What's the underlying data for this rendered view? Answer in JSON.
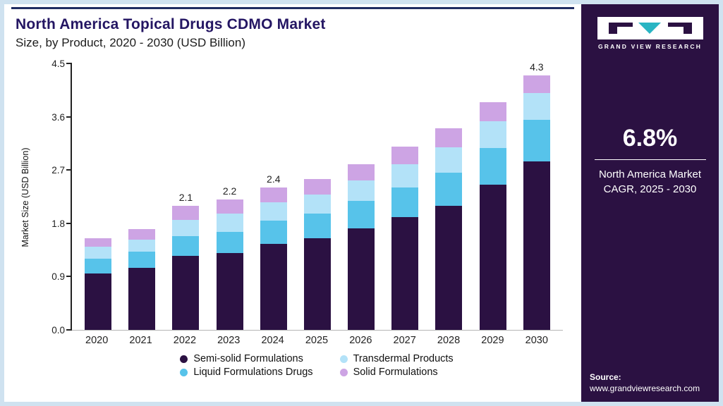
{
  "header": {
    "title_line1": "North America Topical Drugs CDMO Market",
    "title_line2": "Size, by Product, 2020 - 2030 (USD Billion)"
  },
  "chart_data": {
    "type": "bar",
    "stacked": true,
    "title": "North America Topical Drugs CDMO Market Size, by Product, 2020 - 2030 (USD Billion)",
    "xlabel": "",
    "ylabel": "Market Size (USD Billion)",
    "ylim": [
      0,
      4.5
    ],
    "yticks": [
      0.0,
      0.9,
      1.8,
      2.7,
      3.6,
      4.5
    ],
    "grid": false,
    "legend_position": "bottom",
    "categories": [
      "2020",
      "2021",
      "2022",
      "2023",
      "2024",
      "2025",
      "2026",
      "2027",
      "2028",
      "2029",
      "2030"
    ],
    "series": [
      {
        "name": "Semi-solid Formulations",
        "color": "#2b1142",
        "values": [
          0.95,
          1.05,
          1.25,
          1.3,
          1.45,
          1.55,
          1.72,
          1.9,
          2.1,
          2.45,
          2.85
        ]
      },
      {
        "name": "Liquid Formulations Drugs",
        "color": "#57c3ea",
        "values": [
          0.25,
          0.27,
          0.33,
          0.35,
          0.4,
          0.42,
          0.46,
          0.5,
          0.55,
          0.62,
          0.7
        ]
      },
      {
        "name": "Transdermal Products",
        "color": "#b3e2f8",
        "values": [
          0.2,
          0.21,
          0.28,
          0.31,
          0.31,
          0.32,
          0.35,
          0.4,
          0.43,
          0.45,
          0.45
        ]
      },
      {
        "name": "Solid Formulations",
        "color": "#cda4e4",
        "values": [
          0.15,
          0.17,
          0.24,
          0.24,
          0.24,
          0.26,
          0.27,
          0.3,
          0.32,
          0.33,
          0.3
        ]
      }
    ],
    "bar_labels": {
      "2022": "2.1",
      "2023": "2.2",
      "2024": "2.4",
      "2030": "4.3"
    },
    "legend": [
      {
        "label": "Semi-solid Formulations",
        "color": "#2b1142"
      },
      {
        "label": "Transdermal Products",
        "color": "#b3e2f8"
      },
      {
        "label": "Liquid Formulations Drugs",
        "color": "#57c3ea"
      },
      {
        "label": "Solid Formulations",
        "color": "#cda4e4"
      }
    ]
  },
  "sidebar": {
    "logo_text": "GRAND VIEW RESEARCH",
    "cagr_value": "6.8%",
    "cagr_label": "North America Market CAGR, 2025 - 2030",
    "source_label": "Source:",
    "source_url": "www.grandviewresearch.com"
  }
}
